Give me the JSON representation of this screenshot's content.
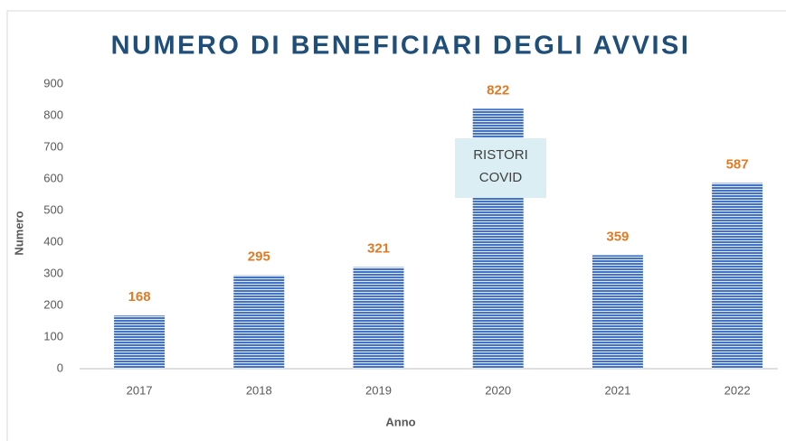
{
  "chart_data": {
    "type": "bar",
    "title": "NUMERO DI BENEFICIARI DEGLI AVVISI",
    "categories": [
      "2017",
      "2018",
      "2019",
      "2020",
      "2021",
      "2022"
    ],
    "values": [
      168,
      295,
      321,
      822,
      359,
      587
    ],
    "color": "#4472c4",
    "label_color": "#e07b24",
    "ylim": [
      0,
      900
    ],
    "yticks": [
      0,
      100,
      200,
      300,
      400,
      500,
      600,
      700,
      800,
      900
    ],
    "grid": false,
    "xlabel": "Anno",
    "ylabel": "Numero",
    "annotation": [
      "RISTORI",
      "COVID"
    ]
  }
}
